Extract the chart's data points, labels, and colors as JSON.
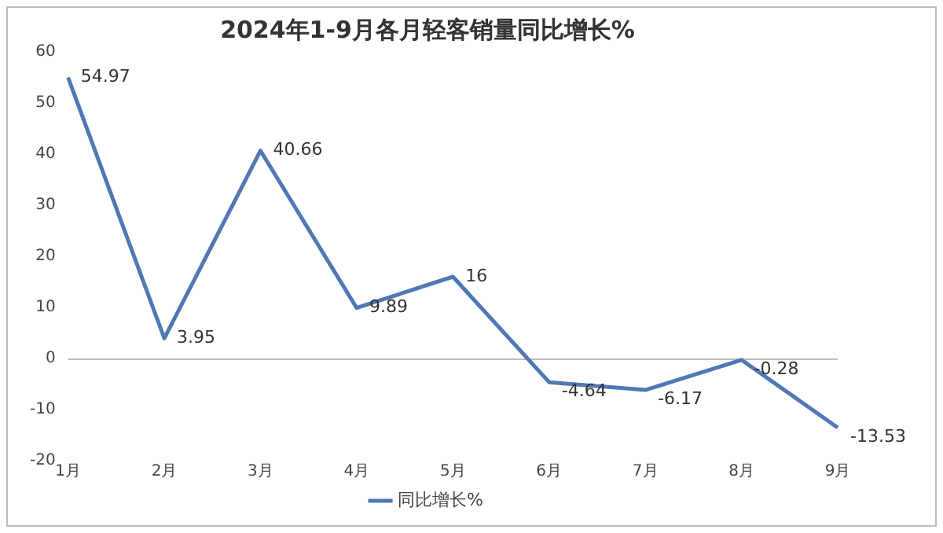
{
  "chart_data": {
    "type": "line",
    "title": "2024年1-9月各月轻客销量同比增长%",
    "categories": [
      "1月",
      "2月",
      "3月",
      "4月",
      "5月",
      "6月",
      "7月",
      "8月",
      "9月"
    ],
    "series": [
      {
        "name": "同比增长%",
        "color": "#5078b4",
        "values": [
          54.97,
          3.95,
          40.66,
          9.89,
          16,
          -4.64,
          -6.17,
          -0.28,
          -13.53
        ]
      }
    ],
    "ylim": [
      -20,
      60
    ],
    "yticks": [
      -20,
      -10,
      0,
      10,
      20,
      30,
      40,
      50,
      60
    ],
    "grid": false,
    "ref_lines": [
      {
        "axis": "y",
        "value": 0,
        "color": "#bbbbbb",
        "line_style": "solid"
      }
    ],
    "legend": "bottom",
    "data_labels": true,
    "marker": "none",
    "line_style": "solid"
  }
}
